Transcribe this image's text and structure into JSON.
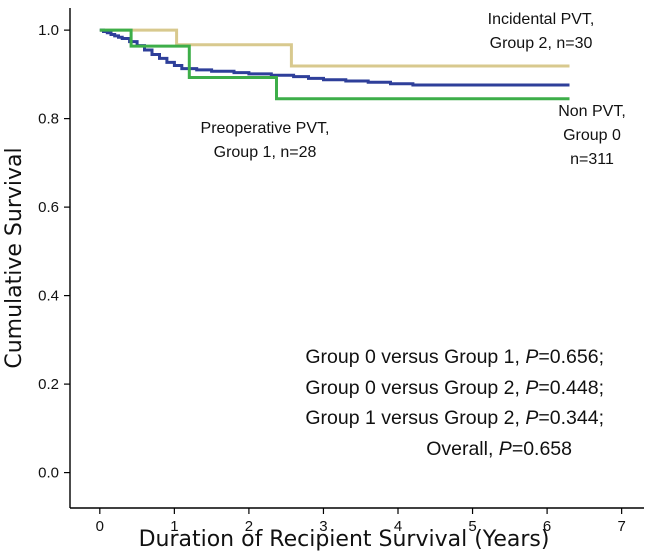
{
  "chart_data": {
    "type": "line",
    "title": "",
    "xlabel": "Duration of Recipient Survival (Years)",
    "ylabel": "Cumulative Survival",
    "xlim": [
      -0.4,
      7.3
    ],
    "ylim": [
      -0.08,
      1.05
    ],
    "x_ticks": [
      "0",
      "1",
      "2",
      "3",
      "4",
      "5",
      "6",
      "7"
    ],
    "y_ticks": [
      "0.0",
      "0.2",
      "0.4",
      "0.6",
      "0.8",
      "1.0"
    ],
    "grid": false,
    "step": true,
    "series": [
      {
        "name": "Incidental PVT, Group 2, n=30",
        "color": "#D8C98E",
        "x": [
          0,
          1.03,
          1.03,
          2.57,
          2.57,
          6.3
        ],
        "y": [
          1.0,
          1.0,
          0.967,
          0.967,
          0.919,
          0.919
        ]
      },
      {
        "name": "Non PVT, Group 0 n=311",
        "color": "#2E3F9A",
        "x": [
          0,
          0.05,
          0.1,
          0.15,
          0.2,
          0.25,
          0.3,
          0.4,
          0.5,
          0.6,
          0.7,
          0.8,
          0.9,
          1.0,
          1.1,
          1.3,
          1.5,
          1.8,
          2.0,
          2.3,
          2.6,
          2.8,
          3.0,
          3.3,
          3.6,
          3.9,
          4.2,
          4.6,
          5.0,
          6.3
        ],
        "y": [
          1.0,
          0.997,
          0.994,
          0.99,
          0.987,
          0.984,
          0.981,
          0.974,
          0.965,
          0.955,
          0.945,
          0.936,
          0.927,
          0.92,
          0.913,
          0.91,
          0.907,
          0.904,
          0.901,
          0.898,
          0.895,
          0.891,
          0.888,
          0.885,
          0.882,
          0.879,
          0.876,
          0.876,
          0.876,
          0.876
        ]
      },
      {
        "name": "Preoperative PVT, Group 1, n=28",
        "color": "#3DAE49",
        "x": [
          0,
          0.42,
          0.42,
          0.72,
          0.72,
          1.2,
          1.2,
          2.37,
          2.37,
          6.3
        ],
        "y": [
          1.0,
          1.0,
          0.964,
          0.964,
          0.964,
          0.964,
          0.893,
          0.893,
          0.845,
          0.845
        ]
      }
    ],
    "annotations": [
      {
        "lines": [
          "Incidental PVT,",
          "Group 2, n=30"
        ]
      },
      {
        "lines": [
          "Non PVT,",
          "Group 0",
          "n=311"
        ]
      },
      {
        "lines": [
          "Preoperative PVT,",
          "Group 1, n=28"
        ]
      }
    ],
    "stats_text": [
      {
        "pre": "Group 0 versus Group 1, ",
        "p": "P",
        "post": "=0.656;"
      },
      {
        "pre": "Group 0 versus Group 2, ",
        "p": "P",
        "post": "=0.448;"
      },
      {
        "pre": "Group 1 versus Group 2, ",
        "p": "P",
        "post": "=0.344;"
      },
      {
        "pre": "Overall, ",
        "p": "P",
        "post": "=0.658"
      }
    ]
  }
}
